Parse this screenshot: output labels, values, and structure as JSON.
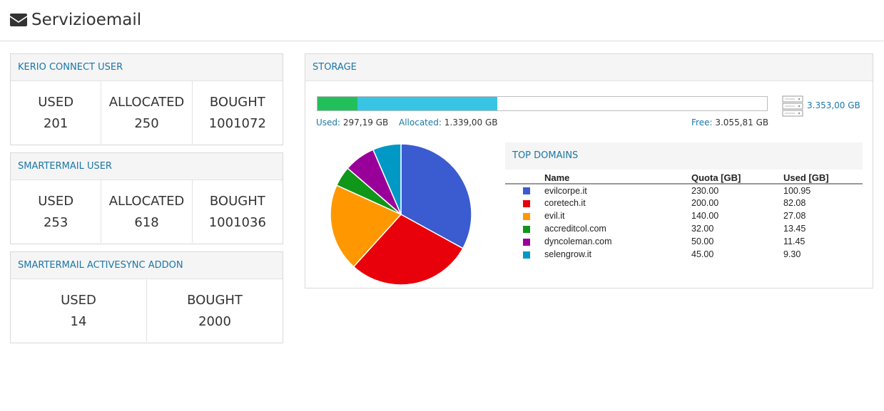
{
  "header": {
    "title": "Servizioemail",
    "icon": "envelope-icon"
  },
  "kerio": {
    "heading": "KERIO CONNECT USER",
    "stats": [
      {
        "label": "USED",
        "value": "201"
      },
      {
        "label": "ALLOCATED",
        "value": "250"
      },
      {
        "label": "BOUGHT",
        "value": "1001072"
      }
    ]
  },
  "smartermail": {
    "heading": "SMARTERMAIL USER",
    "stats": [
      {
        "label": "USED",
        "value": "253"
      },
      {
        "label": "ALLOCATED",
        "value": "618"
      },
      {
        "label": "BOUGHT",
        "value": "1001036"
      }
    ]
  },
  "activesync": {
    "heading": "SMARTERMAIL ACTIVESYNC ADDON",
    "stats": [
      {
        "label": "USED",
        "value": "14"
      },
      {
        "label": "BOUGHT",
        "value": "2000"
      }
    ]
  },
  "storage": {
    "heading": "STORAGE",
    "used_key": "Used:",
    "used_value": "297,19 GB",
    "allocated_key": "Allocated:",
    "allocated_value": "1.339,00 GB",
    "free_key": "Free:",
    "free_value": "3.055,81 GB",
    "total": "3.353,00 GB",
    "used_fraction": 0.0886,
    "allocated_fraction": 0.3993,
    "used_color": "#22c05a",
    "allocated_color": "#38c4e4",
    "server_icon": "server-icon"
  },
  "top_domains": {
    "heading": "TOP DOMAINS",
    "columns": [
      "Name",
      "Quota [GB]",
      "Used [GB]"
    ],
    "rows": [
      {
        "color": "#3b5bd0",
        "name": "evilcorpe.it",
        "quota": "230.00",
        "used": "100.95"
      },
      {
        "color": "#e8000b",
        "name": "coretech.it",
        "quota": "200.00",
        "used": "82.08"
      },
      {
        "color": "#ff9800",
        "name": "evil.it",
        "quota": "140.00",
        "used": "27.08"
      },
      {
        "color": "#109618",
        "name": "accreditcol.com",
        "quota": "32.00",
        "used": "13.45"
      },
      {
        "color": "#990099",
        "name": "dyncoleman.com",
        "quota": "50.00",
        "used": "11.45"
      },
      {
        "color": "#0099c6",
        "name": "selengrow.it",
        "quota": "45.00",
        "used": "9.30"
      }
    ]
  },
  "chart_data": {
    "type": "pie",
    "categories": [
      "evilcorpe.it",
      "coretech.it",
      "evil.it",
      "accreditcol.com",
      "dyncoleman.com",
      "selengrow.it"
    ],
    "values": [
      230.0,
      200.0,
      140.0,
      32.0,
      50.0,
      45.0
    ],
    "colors": [
      "#3b5bd0",
      "#e8000b",
      "#ff9800",
      "#109618",
      "#990099",
      "#0099c6"
    ]
  }
}
